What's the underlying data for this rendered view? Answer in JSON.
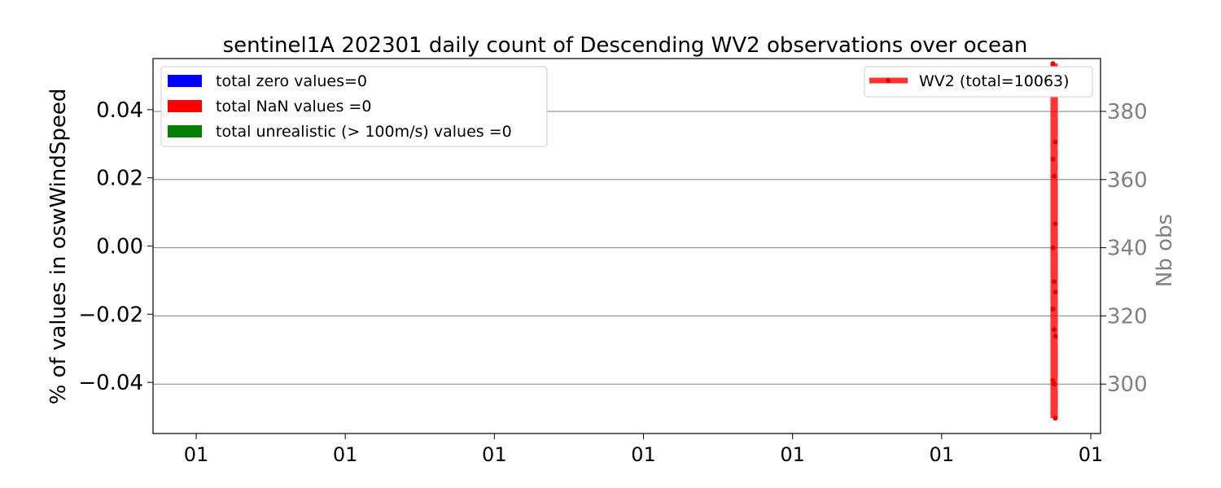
{
  "chart_data": {
    "type": "line",
    "title": "sentinel1A 202301 daily count of Descending WV2 observations over ocean",
    "ylabel_left": "% of values in oswWindSpeed",
    "ylabel_right": "Nb obs",
    "x_tick_labels": [
      "01",
      "01",
      "01",
      "01",
      "01",
      "01",
      "01"
    ],
    "y_left_ticks": [
      "0.04",
      "0.02",
      "0.00",
      "−0.02",
      "−0.04"
    ],
    "y_left_tick_values": [
      0.04,
      0.02,
      0.0,
      -0.02,
      -0.04
    ],
    "y_left_lim": [
      -0.055,
      0.055
    ],
    "y_right_ticks": [
      "380",
      "360",
      "340",
      "320",
      "300"
    ],
    "y_right_tick_values": [
      380,
      360,
      340,
      320,
      300
    ],
    "y_right_lim": [
      285.5,
      395.5
    ],
    "grid": "horizontal, right axis",
    "legend_left": {
      "position": "upper-left",
      "entries": [
        {
          "label": "total zero values=0",
          "color": "#0000ff"
        },
        {
          "label": "total NaN values =0",
          "color": "#ff0000"
        },
        {
          "label": "total unrealistic (> 100m/s) values =0",
          "color": "#008000"
        }
      ]
    },
    "legend_right": {
      "position": "upper-right",
      "entries": [
        {
          "label": "WV2 (total=10063)",
          "color": "#ff0000"
        }
      ]
    },
    "series": [
      {
        "name": "WV2 (total=10063)",
        "color": "#ff0000",
        "axis": "right",
        "x_position": "single day, near right end",
        "values": [
          394,
          390,
          371,
          366,
          361,
          347,
          340,
          330,
          327,
          322,
          316,
          314,
          301,
          300,
          290
        ]
      }
    ]
  }
}
